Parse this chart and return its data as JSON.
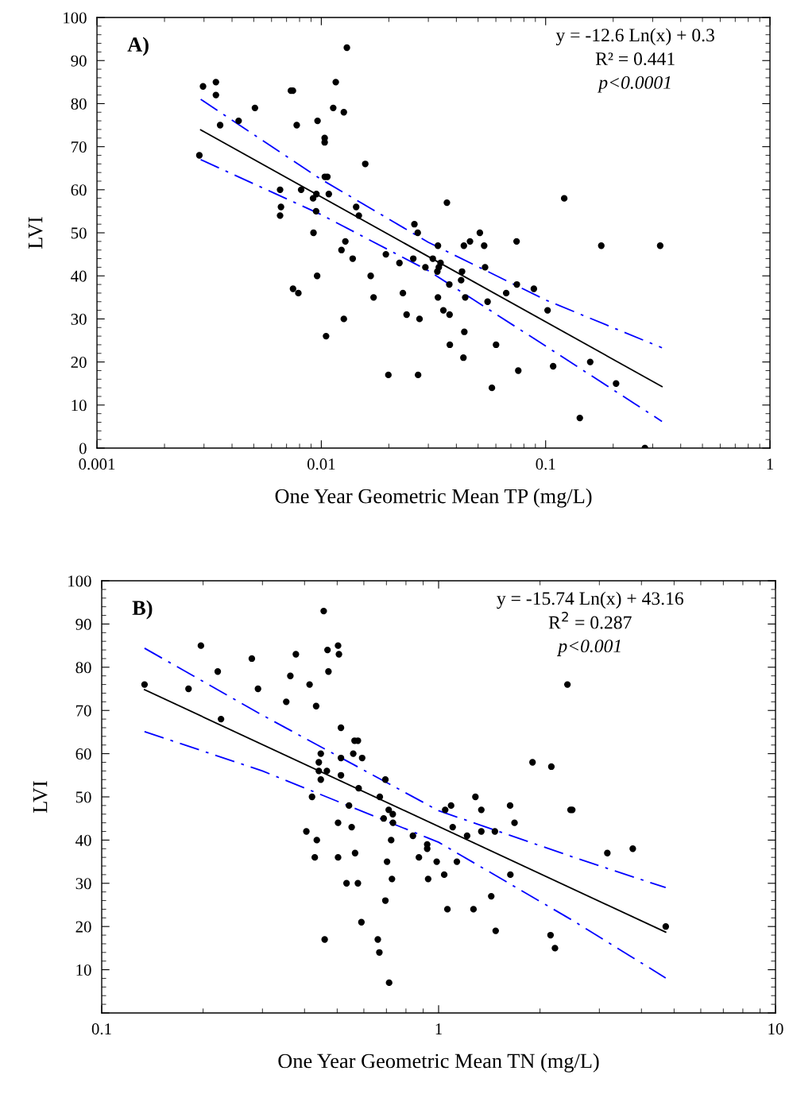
{
  "chart_data": [
    {
      "type": "scatter",
      "xlabel": "One Year Geometric Mean TP (mg/L)",
      "ylabel": "LVI",
      "log": "x",
      "xlim": [
        0.001,
        1
      ],
      "xticks": [
        0.001,
        0.01,
        0.1,
        1
      ],
      "ylim": [
        0,
        100
      ],
      "yticks": [
        0,
        10,
        20,
        30,
        40,
        50,
        60,
        70,
        80,
        90,
        100
      ],
      "grid": false,
      "annotations": [
        "A)",
        "y = -12.6 Ln(x) + 0.3",
        "R² = 0.441",
        "p<0.0001"
      ],
      "series": [
        {
          "color": "#000000",
          "marker": "circle",
          "x": [
            0.00286,
            0.00297,
            0.00339,
            0.00339,
            0.00354,
            0.00428,
            0.00506,
            0.00655,
            0.00661,
            0.00655,
            0.00732,
            0.00747,
            0.00748,
            0.00777,
            0.0079,
            0.00813,
            0.00919,
            0.00951,
            0.00948,
            0.00923,
            0.00962,
            0.00958,
            0.01035,
            0.01035,
            0.01037,
            0.01064,
            0.0105,
            0.0108,
            0.0113,
            0.0116,
            0.0126,
            0.0123,
            0.0128,
            0.0126,
            0.013,
            0.0138,
            0.0143,
            0.0147,
            0.0157,
            0.0166,
            0.0171,
            0.0194,
            0.0199,
            0.0223,
            0.0231,
            0.024,
            0.0257,
            0.026,
            0.0269,
            0.0274,
            0.027,
            0.0291,
            0.0363,
            0.121,
            0.0509,
            0.046,
            0.0432,
            0.0532,
            0.0742,
            0.177,
            0.324,
            0.0331,
            0.0314,
            0.034,
            0.0334,
            0.0329,
            0.0424,
            0.042,
            0.0537,
            0.0372,
            0.0667,
            0.0744,
            0.0886,
            0.0331,
            0.0438,
            0.0551,
            0.035,
            0.0373,
            0.102,
            0.0434,
            0.0374,
            0.0601,
            0.043,
            0.158,
            0.108,
            0.0755,
            0.206,
            0.0576,
            0.142,
            0.277
          ],
          "values": [
            68,
            84,
            85,
            82,
            75,
            76,
            79,
            60,
            56,
            54,
            83,
            83,
            37,
            75,
            36,
            60,
            58,
            59,
            55,
            50,
            76,
            40,
            72,
            71,
            63,
            63,
            26,
            59,
            79,
            85,
            78,
            46,
            48,
            30,
            93,
            44,
            56,
            54,
            66,
            40,
            35,
            45,
            17,
            43,
            36,
            31,
            44,
            52,
            50,
            30,
            17,
            42,
            57,
            58,
            50,
            48,
            47,
            47,
            48,
            47,
            47,
            47,
            44,
            43,
            42,
            41,
            41,
            39,
            42,
            38,
            36,
            38,
            37,
            35,
            35,
            34,
            32,
            31,
            32,
            27,
            24,
            24,
            21,
            20,
            19,
            18,
            15,
            14,
            7,
            0
          ]
        },
        {
          "type": "line",
          "color": "#000000",
          "line_style": "solid",
          "x": [
            0.0029,
            0.33
          ],
          "values": [
            73.9,
            14.3
          ]
        },
        {
          "type": "line",
          "color": "#0000ff",
          "line_style": "dashed",
          "x": [
            0.0029,
            0.01,
            0.03,
            0.1,
            0.33
          ],
          "values": [
            81,
            62.4,
            47.8,
            34.4,
            23.3
          ]
        },
        {
          "type": "line",
          "color": "#0000ff",
          "line_style": "dashed",
          "x": [
            0.0029,
            0.01,
            0.03,
            0.1,
            0.33
          ],
          "values": [
            67,
            54.2,
            41.2,
            23.7,
            6.2
          ]
        }
      ]
    },
    {
      "type": "scatter",
      "xlabel": "One Year Geometric Mean TN (mg/L)",
      "ylabel": "LVI",
      "log": "x",
      "xlim": [
        0.1,
        10
      ],
      "xticks": [
        0.1,
        1,
        10
      ],
      "ylim": [
        0,
        100
      ],
      "yticks": [
        {
          "value": 0,
          "label": null
        },
        10,
        20,
        30,
        40,
        50,
        60,
        70,
        80,
        90,
        100
      ],
      "grid": false,
      "annotations": [
        "B)",
        "y = -15.74 Ln(x) + 43.16",
        "R$^{2}$ = 0.287",
        "p<0.001"
      ],
      "series": [
        {
          "color": "#000000",
          "marker": "circle",
          "x": [
            0.134,
            0.181,
            0.197,
            0.221,
            0.226,
            0.279,
            0.291,
            0.353,
            0.363,
            0.377,
            0.414,
            0.433,
            0.456,
            0.468,
            0.471,
            0.503,
            0.506,
            0.513,
            0.563,
            0.576,
            0.558,
            0.593,
            0.513,
            0.447,
            0.441,
            0.441,
            0.466,
            0.447,
            0.513,
            0.579,
            0.695,
            0.669,
            0.421,
            0.542,
            0.711,
            0.731,
            0.687,
            0.732,
            0.503,
            0.552,
            0.839,
            0.405,
            0.435,
            0.723,
            0.925,
            0.925,
            0.429,
            0.503,
            0.565,
            0.874,
            0.703,
            0.987,
            0.533,
            0.576,
            0.727,
            0.931,
            0.695,
            0.59,
            0.459,
            0.66,
            0.667,
            0.713,
            1.046,
            1.089,
            1.286,
            1.339,
            1.63,
            1.68,
            1.101,
            1.215,
            1.339,
            1.469,
            1.133,
            1.039,
            1.633,
            1.433,
            1.062,
            1.269,
            1.477,
            2.149,
            2.215,
            1.9,
            2.161,
            2.412,
            2.463,
            2.493,
            3.168,
            3.77,
            4.723
          ],
          "values": [
            76,
            75,
            85,
            79,
            68,
            82,
            75,
            72,
            78,
            83,
            76,
            71,
            93,
            84,
            79,
            85,
            83,
            66,
            63,
            63,
            60,
            59,
            59,
            60,
            58,
            56,
            56,
            54,
            55,
            52,
            54,
            50,
            50,
            48,
            47,
            46,
            45,
            44,
            44,
            43,
            41,
            42,
            40,
            40,
            39,
            38,
            36,
            36,
            37,
            36,
            35,
            35,
            30,
            30,
            31,
            31,
            26,
            21,
            17,
            17,
            14,
            7,
            47,
            48,
            50,
            47,
            48,
            44,
            43,
            41,
            42,
            42,
            35,
            32,
            32,
            27,
            24,
            24,
            19,
            18,
            15,
            58,
            57,
            76,
            47,
            47,
            37,
            38,
            20
          ]
        },
        {
          "type": "line",
          "color": "#000000",
          "line_style": "solid",
          "x": [
            0.134,
            4.72
          ],
          "values": [
            74.8,
            18.7
          ]
        },
        {
          "type": "line",
          "color": "#0000ff",
          "line_style": "dashed",
          "x": [
            0.134,
            0.3,
            1,
            2.5,
            4.72
          ],
          "values": [
            84.4,
            68.9,
            46.8,
            36.1,
            29.0
          ]
        },
        {
          "type": "line",
          "color": "#0000ff",
          "line_style": "dashed",
          "x": [
            0.134,
            0.3,
            1,
            2.5,
            4.72
          ],
          "values": [
            65.1,
            56.0,
            39.5,
            21.4,
            8.1
          ]
        }
      ]
    }
  ]
}
